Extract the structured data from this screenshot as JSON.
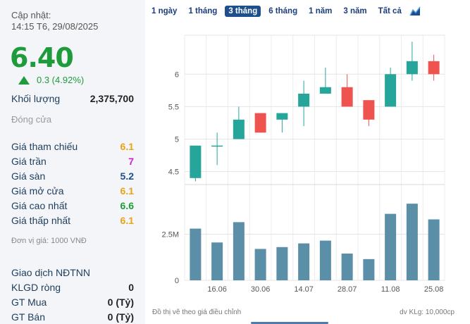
{
  "update": {
    "label": "Cập nhật:",
    "time": "14:15 T6, 29/08/2025"
  },
  "price": "6.40",
  "change": "0.3 (4.92%)",
  "volume": {
    "label": "Khối lượng",
    "value": "2,375,700"
  },
  "close_label": "Đóng cửa",
  "stats": [
    {
      "label": "Giá tham chiếu",
      "value": "6.1",
      "color": "#e8a317"
    },
    {
      "label": "Giá trần",
      "value": "7",
      "color": "#d020d0"
    },
    {
      "label": "Giá sàn",
      "value": "5.2",
      "color": "#1c4f8c"
    },
    {
      "label": "Giá mở cửa",
      "value": "6.1",
      "color": "#e8a317"
    },
    {
      "label": "Giá cao nhất",
      "value": "6.6",
      "color": "#1e9b3a"
    },
    {
      "label": "Giá thấp nhất",
      "value": "6.1",
      "color": "#e8a317"
    }
  ],
  "unit": "Đơn vị giá: 1000 VNĐ",
  "foreign": {
    "title": "Giao dịch NĐTNN",
    "rows": [
      {
        "label": "KLGD ròng",
        "value": "0"
      },
      {
        "label": "GT Mua",
        "value": "0 (Tỷ)"
      },
      {
        "label": "GT Bán",
        "value": "0 (Tỷ)"
      }
    ]
  },
  "tabs": [
    "1 ngày",
    "1 tháng",
    "3 tháng",
    "6 tháng",
    "1 năm",
    "3 năm",
    "Tất cả"
  ],
  "active_tab": "3 tháng",
  "chart_icon": "area-chart-icon",
  "footer_left": "Đồ thị vẽ theo giá điều chỉnh",
  "footer_right": "dv KLg: 10,000cp",
  "chart_data": {
    "type": "candlestick",
    "price_ticks": [
      "6",
      "5.5",
      "5",
      "4.5"
    ],
    "price_tick_values": [
      6,
      5.5,
      5,
      4.5
    ],
    "volume_ticks": [
      "2.5M",
      "0"
    ],
    "volume_tick_values": [
      2500000,
      0
    ],
    "x_ticks": [
      "16.06",
      "30.06",
      "14.07",
      "28.07",
      "11.08",
      "25.08"
    ],
    "candles": [
      {
        "o": 4.4,
        "c": 4.9,
        "h": 4.9,
        "l": 4.35,
        "vol": 2800000
      },
      {
        "o": 4.9,
        "c": 4.9,
        "h": 5.1,
        "l": 4.6,
        "vol": 2050000
      },
      {
        "o": 5.0,
        "c": 5.3,
        "h": 5.5,
        "l": 5.0,
        "vol": 3150000
      },
      {
        "o": 5.4,
        "c": 5.1,
        "h": 5.4,
        "l": 5.1,
        "vol": 1700000
      },
      {
        "o": 5.3,
        "c": 5.4,
        "h": 5.4,
        "l": 5.1,
        "vol": 1800000
      },
      {
        "o": 5.5,
        "c": 5.7,
        "h": 5.9,
        "l": 5.2,
        "vol": 2000000
      },
      {
        "o": 5.7,
        "c": 5.8,
        "h": 6.1,
        "l": 5.7,
        "vol": 2150000
      },
      {
        "o": 5.8,
        "c": 5.5,
        "h": 6.0,
        "l": 5.5,
        "vol": 1450000
      },
      {
        "o": 5.6,
        "c": 5.3,
        "h": 5.6,
        "l": 5.2,
        "vol": 1150000
      },
      {
        "o": 5.5,
        "c": 6.0,
        "h": 6.1,
        "l": 5.5,
        "vol": 3600000
      },
      {
        "o": 6.0,
        "c": 6.2,
        "h": 6.5,
        "l": 5.9,
        "vol": 4150000
      },
      {
        "o": 6.2,
        "c": 6.0,
        "h": 6.3,
        "l": 5.9,
        "vol": 3300000
      }
    ],
    "up_color": "#26a69a",
    "down_color": "#ef5350",
    "volume_color": "#5b8fa8"
  }
}
